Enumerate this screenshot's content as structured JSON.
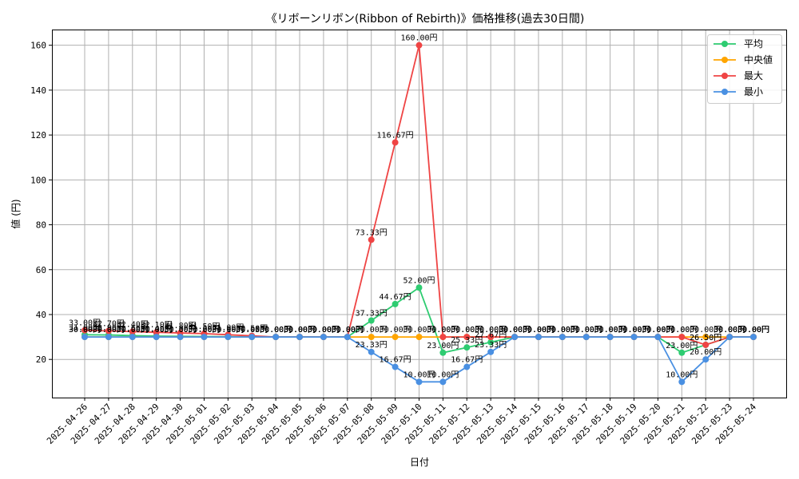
{
  "chart_data": {
    "type": "line",
    "title": "《リボーンリボン(Ribbon of Rebirth)》価格推移(過去30日間)",
    "xlabel": "日付",
    "ylabel": "値 (円)",
    "ylim": [
      3,
      167
    ],
    "yticks": [
      20,
      40,
      60,
      80,
      100,
      120,
      140,
      160
    ],
    "grid": true,
    "legend_position": "top-right",
    "label_suffix": "円",
    "categories": [
      "2025-04-26",
      "2025-04-27",
      "2025-04-28",
      "2025-04-29",
      "2025-04-30",
      "2025-05-01",
      "2025-05-02",
      "2025-05-03",
      "2025-05-04",
      "2025-05-05",
      "2025-05-06",
      "2025-05-07",
      "2025-05-08",
      "2025-05-09",
      "2025-05-10",
      "2025-05-11",
      "2025-05-12",
      "2025-05-13",
      "2025-05-14",
      "2025-05-15",
      "2025-05-16",
      "2025-05-17",
      "2025-05-18",
      "2025-05-19",
      "2025-05-20",
      "2025-05-21",
      "2025-05-22",
      "2025-05-23",
      "2025-05-24"
    ],
    "series": [
      {
        "name": "平均",
        "color": "#2ecc71",
        "values": [
          31.0,
          30.9,
          30.6,
          30.4,
          30.3,
          30.2,
          30.1,
          30.05,
          30.0,
          30.0,
          30.0,
          30.0,
          37.33,
          44.67,
          52.0,
          23.0,
          25.33,
          27.67,
          30.0,
          30.0,
          30.0,
          30.0,
          30.0,
          30.0,
          30.0,
          23.0,
          26.5,
          30.0,
          30.0
        ]
      },
      {
        "name": "中央値",
        "color": "#ffa500",
        "values": [
          30.0,
          30.0,
          30.0,
          30.0,
          30.0,
          30.0,
          30.0,
          30.0,
          30.0,
          30.0,
          30.0,
          30.0,
          30.0,
          30.0,
          30.0,
          30.0,
          30.0,
          30.0,
          30.0,
          30.0,
          30.0,
          30.0,
          30.0,
          30.0,
          30.0,
          30.0,
          30.0,
          30.0,
          30.0
        ]
      },
      {
        "name": "最大",
        "color": "#ef4444",
        "values": [
          33.0,
          32.7,
          32.4,
          32.1,
          31.8,
          31.5,
          31.0,
          30.5,
          30.0,
          30.0,
          30.0,
          30.0,
          73.33,
          116.67,
          160.0,
          30.0,
          30.0,
          30.0,
          30.0,
          30.0,
          30.0,
          30.0,
          30.0,
          30.0,
          30.0,
          30.0,
          26.5,
          30.0,
          30.0
        ]
      },
      {
        "name": "最小",
        "color": "#4a90e2",
        "values": [
          30.0,
          30.0,
          30.0,
          30.0,
          30.0,
          30.0,
          30.0,
          30.0,
          30.0,
          30.0,
          30.0,
          30.0,
          23.33,
          16.67,
          10.0,
          10.0,
          16.67,
          23.33,
          30.0,
          30.0,
          30.0,
          30.0,
          30.0,
          30.0,
          30.0,
          10.0,
          20.0,
          30.0,
          30.0
        ]
      }
    ]
  }
}
